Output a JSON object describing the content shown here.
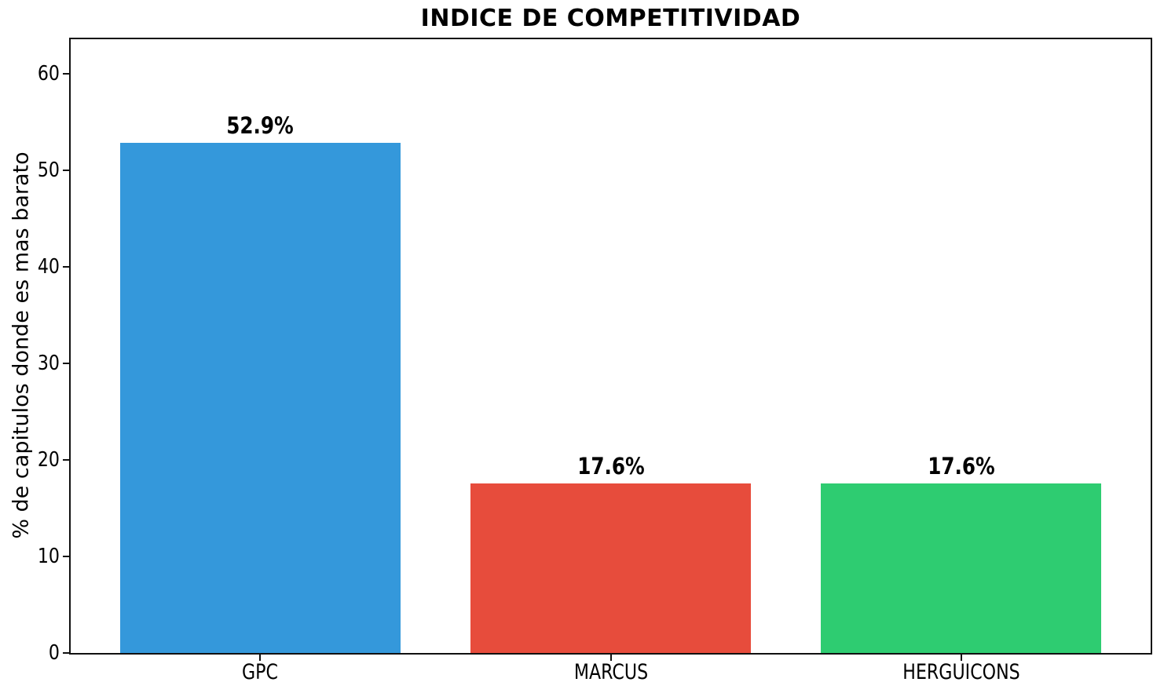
{
  "figure": {
    "background": "#ffffff",
    "text_color": "#000000",
    "spine_color": "#111111"
  },
  "chart_data": {
    "type": "bar",
    "title": "INDICE DE COMPETITIVIDAD",
    "xlabel": "",
    "ylabel": "% de capitulos donde es mas barato",
    "categories": [
      "GPC",
      "MARCUS",
      "HERGUICONS"
    ],
    "values": [
      52.9,
      17.6,
      17.6
    ],
    "bar_labels": [
      "52.9%",
      "17.6%",
      "17.6%"
    ],
    "bar_colors": [
      "#3498db",
      "#e74c3c",
      "#2ecc71"
    ],
    "yticks": [
      0,
      10,
      20,
      30,
      40,
      50,
      60
    ],
    "ylim": [
      0,
      63.6
    ],
    "bar_width_fraction": 0.8,
    "grid": false,
    "legend": "none"
  }
}
